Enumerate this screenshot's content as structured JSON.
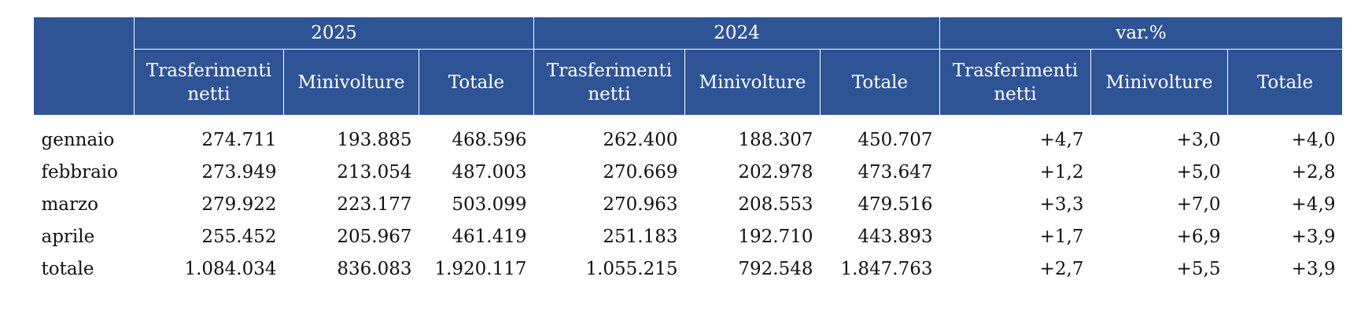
{
  "headers": {
    "groups": [
      "2025",
      "2024",
      "var.%"
    ],
    "subs": [
      "Trasferimenti netti",
      "Minivolture",
      "Totale",
      "Trasferimenti netti",
      "Minivolture",
      "Totale",
      "Trasferimenti netti",
      "Minivolture",
      "Totale"
    ]
  },
  "rows": [
    {
      "label": "gennaio",
      "cells": [
        "274.711",
        "193.885",
        "468.596",
        "262.400",
        "188.307",
        "450.707",
        "+4,7",
        "+3,0",
        "+4,0"
      ]
    },
    {
      "label": "febbraio",
      "cells": [
        "273.949",
        "213.054",
        "487.003",
        "270.669",
        "202.978",
        "473.647",
        "+1,2",
        "+5,0",
        "+2,8"
      ]
    },
    {
      "label": "marzo",
      "cells": [
        "279.922",
        "223.177",
        "503.099",
        "270.963",
        "208.553",
        "479.516",
        "+3,3",
        "+7,0",
        "+4,9"
      ]
    },
    {
      "label": "aprile",
      "cells": [
        "255.452",
        "205.967",
        "461.419",
        "251.183",
        "192.710",
        "443.893",
        "+1,7",
        "+6,9",
        "+3,9"
      ]
    },
    {
      "label": "totale",
      "cells": [
        "1.084.034",
        "836.083",
        "1.920.117",
        "1.055.215",
        "792.548",
        "1.847.763",
        "+2,7",
        "+5,5",
        "+3,9"
      ]
    }
  ],
  "colors": {
    "header_bg": "#2e5496",
    "header_text": "#ffffff"
  }
}
